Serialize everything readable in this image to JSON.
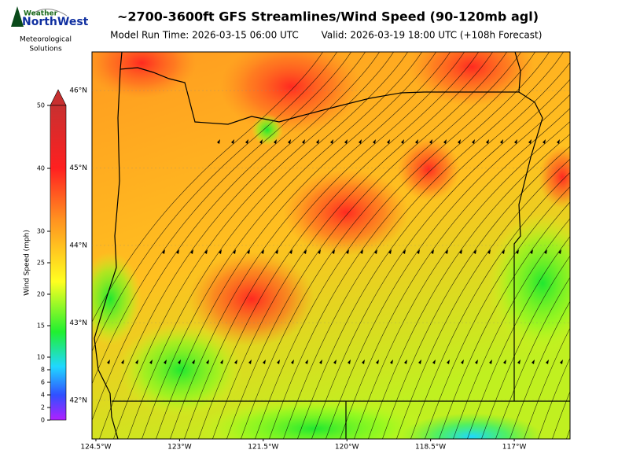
{
  "header": {
    "logo_top": "Weather",
    "logo_main": "NorthWest",
    "logo_sub": [
      "Meteorological",
      "Solutions"
    ],
    "title": "~2700-3600ft GFS Streamlines/Wind Speed (90-120mb agl)",
    "model_run": "Model Run Time: 2026-03-15 06:00 UTC",
    "valid": "Valid: 2026-03-19 18:00 UTC  (+108h Forecast)"
  },
  "colorbar": {
    "label": "Wind Speed (mph)",
    "lim": [
      0,
      50
    ],
    "ticks": [
      0,
      2,
      4,
      6,
      8,
      10,
      15,
      20,
      25,
      30,
      40,
      50
    ]
  },
  "map": {
    "lon_lim": [
      -124.57,
      -116.0
    ],
    "lat_lim": [
      41.5,
      46.5
    ],
    "lon_ticks": [
      {
        "value": -124.5,
        "label": "124.5°W"
      },
      {
        "value": -123,
        "label": "123°W"
      },
      {
        "value": -121.5,
        "label": "121.5°W"
      },
      {
        "value": -120,
        "label": "120°W"
      },
      {
        "value": -118.5,
        "label": "118.5°W"
      },
      {
        "value": -117,
        "label": "117°W"
      }
    ],
    "lat_ticks": [
      {
        "value": 46,
        "label": "46°N"
      },
      {
        "value": 45,
        "label": "45°N"
      },
      {
        "value": 44,
        "label": "44°N"
      },
      {
        "value": 43,
        "label": "43°N"
      },
      {
        "value": 42,
        "label": "42°N"
      }
    ]
  }
}
